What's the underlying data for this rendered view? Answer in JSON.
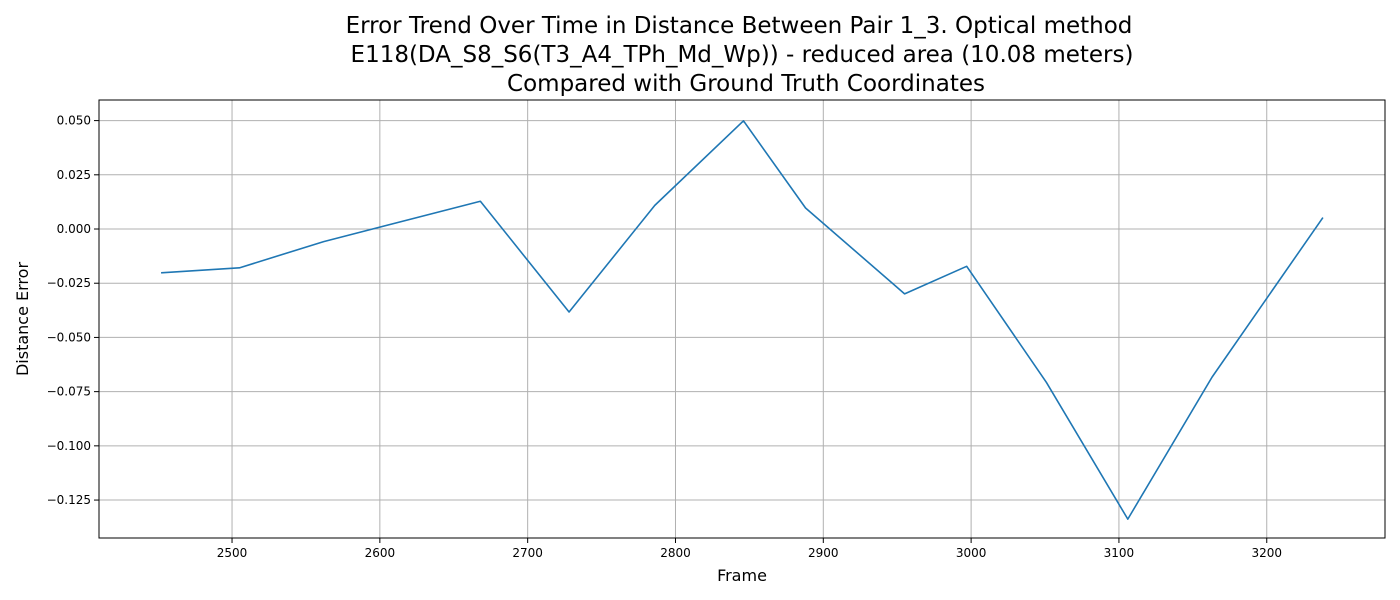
{
  "chart_data": {
    "type": "line",
    "title_lines": [
      "Error Trend Over Time in Distance Between Pair 1_3. Optical method",
      "E118(DA_S8_S6(T3_A4_TPh_Md_Wp)) - reduced area (10.08 meters)",
      "Compared with Ground Truth Coordinates"
    ],
    "xlabel": "Frame",
    "ylabel": "Distance Error",
    "xlim": [
      2410,
      3280
    ],
    "ylim": [
      -0.1425,
      0.0595
    ],
    "xticks": [
      2500,
      2600,
      2700,
      2800,
      2900,
      3000,
      3100,
      3200
    ],
    "xtick_labels": [
      "2500",
      "2600",
      "2700",
      "2800",
      "2900",
      "3000",
      "3100",
      "3200"
    ],
    "yticks": [
      0.05,
      0.025,
      0.0,
      -0.025,
      -0.05,
      -0.075,
      -0.1,
      -0.125
    ],
    "ytick_labels": [
      "0.050",
      "0.025",
      "0.000",
      "−0.025",
      "−0.050",
      "−0.075",
      "−0.100",
      "−0.125"
    ],
    "grid": true,
    "series": [
      {
        "color": "#1f77b4",
        "x": [
          2452,
          2505,
          2562,
          2668,
          2728,
          2786,
          2846,
          2888,
          2955,
          2997,
          3051,
          3106,
          3163,
          3238
        ],
        "y": [
          -0.0202,
          -0.0179,
          -0.0058,
          0.0128,
          -0.0383,
          0.0109,
          0.0499,
          0.0097,
          -0.0299,
          -0.0172,
          -0.0708,
          -0.1338,
          -0.0683,
          0.0053
        ]
      }
    ]
  }
}
